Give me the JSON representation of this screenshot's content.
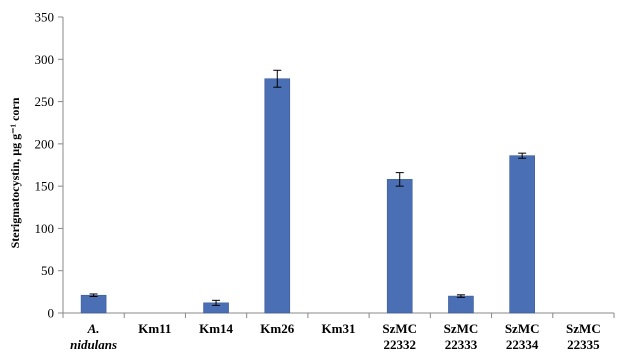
{
  "chart_data": {
    "type": "bar",
    "categories": [
      {
        "lines": [
          "A.",
          "nidulans"
        ],
        "italic": true
      },
      {
        "lines": [
          "Km11"
        ],
        "italic": false
      },
      {
        "lines": [
          "Km14"
        ],
        "italic": false
      },
      {
        "lines": [
          "Km26"
        ],
        "italic": false
      },
      {
        "lines": [
          "Km31"
        ],
        "italic": false
      },
      {
        "lines": [
          "SzMC",
          "22332"
        ],
        "italic": false
      },
      {
        "lines": [
          "SzMC",
          "22333"
        ],
        "italic": false
      },
      {
        "lines": [
          "SzMC",
          "22334"
        ],
        "italic": false
      },
      {
        "lines": [
          "SzMC",
          "22335"
        ],
        "italic": false
      }
    ],
    "values": [
      21,
      0,
      12,
      277,
      0,
      158,
      20,
      186,
      0
    ],
    "errors": [
      1.5,
      0,
      3,
      10,
      0,
      8,
      1.5,
      3,
      0
    ],
    "ylabel": "Sterigmatocystin, µg g⁻¹ corn",
    "ylim": [
      0,
      350
    ],
    "yticks": [
      0,
      50,
      100,
      150,
      200,
      250,
      300,
      350
    ],
    "bar_color": "#4a6fb5",
    "grid": false
  }
}
